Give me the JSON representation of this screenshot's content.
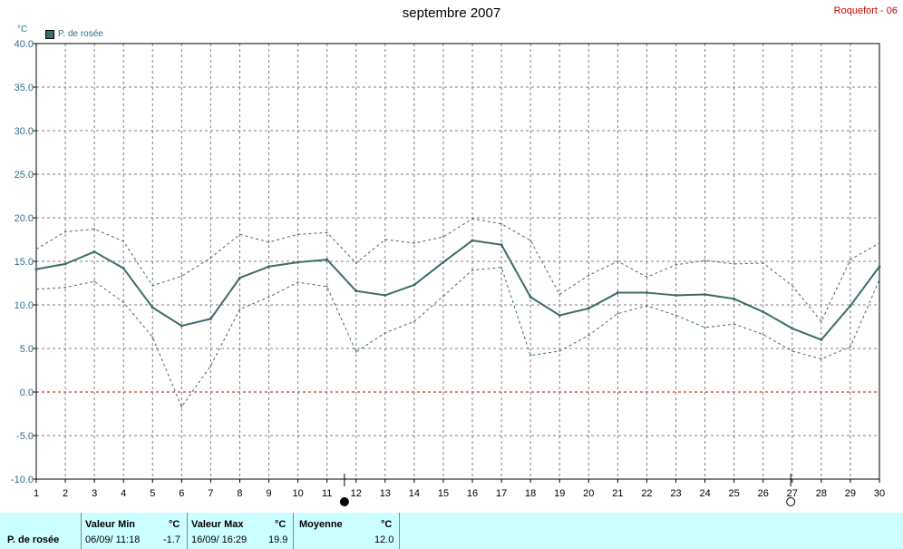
{
  "header": {
    "title": "septembre 2007",
    "station": "Roquefort - 06",
    "unit": "°C"
  },
  "chart_data": {
    "type": "line",
    "legend": "P. de rosée",
    "legend_position": "top-left",
    "x": [
      1,
      2,
      3,
      4,
      5,
      6,
      7,
      8,
      9,
      10,
      11,
      12,
      13,
      14,
      15,
      16,
      17,
      18,
      19,
      20,
      21,
      22,
      23,
      24,
      25,
      26,
      27,
      28,
      29,
      30
    ],
    "xlim": [
      1,
      30
    ],
    "ylim": [
      -10,
      40
    ],
    "y_ticks": [
      "40.0",
      "35.0",
      "30.0",
      "25.0",
      "20.0",
      "15.0",
      "10.0",
      "5.0",
      "0.0",
      "-5.0",
      "-10.0"
    ],
    "grid": true,
    "zero_line_color": "#cc0000",
    "series": [
      {
        "role": "mean",
        "color": "#3e6b6b",
        "values": [
          14.1,
          14.7,
          16.1,
          14.2,
          9.7,
          7.6,
          8.4,
          13.1,
          14.4,
          14.9,
          15.2,
          11.6,
          11.1,
          12.3,
          14.9,
          17.4,
          16.9,
          10.9,
          8.8,
          9.6,
          11.4,
          11.4,
          11.1,
          11.2,
          10.7,
          9.2,
          7.3,
          6.0,
          9.9,
          14.4
        ]
      },
      {
        "role": "max",
        "color": "#3e6b6b",
        "values": [
          16.4,
          18.4,
          18.7,
          17.3,
          12.2,
          13.3,
          15.4,
          18.1,
          17.2,
          18.1,
          18.3,
          14.8,
          17.5,
          17.1,
          17.8,
          19.9,
          19.3,
          17.4,
          11.2,
          13.4,
          15.0,
          13.2,
          14.6,
          15.1,
          14.7,
          14.8,
          12.2,
          8.1,
          15.2,
          17.1
        ]
      },
      {
        "role": "min",
        "color": "#3e6b6b",
        "values": [
          11.8,
          12.0,
          12.7,
          10.3,
          6.3,
          -1.7,
          3.0,
          9.5,
          10.9,
          12.6,
          12.1,
          4.6,
          6.8,
          8.1,
          11.0,
          14.0,
          14.3,
          4.2,
          4.7,
          6.5,
          9.0,
          9.9,
          8.8,
          7.4,
          7.8,
          6.6,
          4.7,
          3.8,
          5.2,
          12.9
        ]
      }
    ],
    "moon_markers": [
      {
        "phase": "new",
        "x": 11.6
      },
      {
        "phase": "full",
        "x": 26.95
      }
    ]
  },
  "footer": {
    "series_label": "P. de rosée",
    "min": {
      "label": "Valeur Min",
      "unit": "°C",
      "date": "06/09/  11:18",
      "value": "-1.7"
    },
    "max": {
      "label": "Valeur Max",
      "unit": "°C",
      "date": "16/09/  16:29",
      "value": "19.9"
    },
    "avg": {
      "label": "Moyenne",
      "unit": "°C",
      "value": "12.0"
    }
  }
}
